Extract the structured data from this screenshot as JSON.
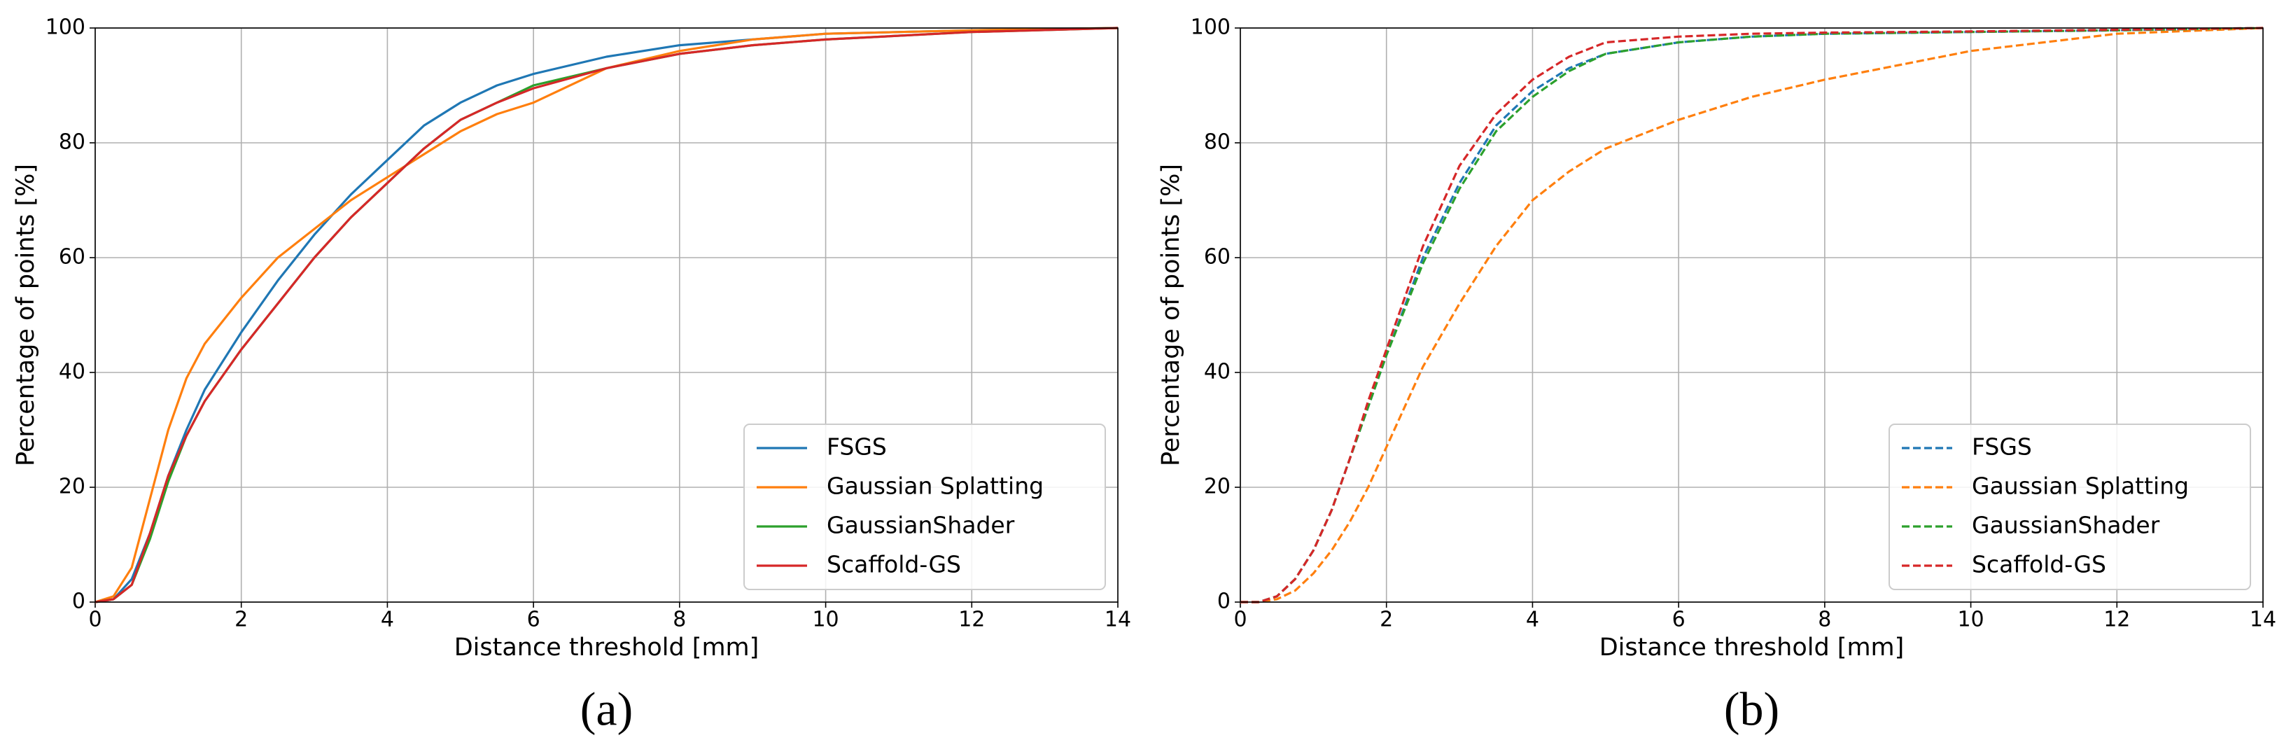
{
  "chart_data": [
    {
      "type": "line",
      "label": "(a)",
      "xlabel": "Distance threshold [mm]",
      "ylabel": "Percentage of points [%]",
      "x": [
        0,
        0.25,
        0.5,
        0.75,
        1,
        1.25,
        1.5,
        2,
        2.5,
        3,
        3.5,
        4,
        4.5,
        5,
        5.5,
        6,
        7,
        8,
        9,
        10,
        12,
        14
      ],
      "series": [
        {
          "name": "FSGS",
          "color": "#1f77b4",
          "values": [
            0,
            0.5,
            4,
            12,
            22,
            30,
            37,
            47,
            56,
            64,
            71,
            77,
            83,
            87,
            90,
            92,
            95,
            97,
            98,
            99,
            99.6,
            100
          ]
        },
        {
          "name": "Gaussian Splatting",
          "color": "#ff7f0e",
          "values": [
            0,
            1,
            6,
            18,
            30,
            39,
            45,
            53,
            60,
            65,
            70,
            74,
            78,
            82,
            85,
            87,
            93,
            96,
            98,
            99,
            99.6,
            100
          ]
        },
        {
          "name": "GaussianShader",
          "color": "#2ca02c",
          "values": [
            0,
            0.5,
            3,
            11,
            21,
            29,
            35,
            44,
            52,
            60,
            67,
            73,
            79,
            84,
            87,
            90,
            93,
            95.5,
            97,
            98,
            99.3,
            100
          ]
        },
        {
          "name": "Scaffold-GS",
          "color": "#d62728",
          "values": [
            0,
            0.5,
            3,
            12,
            22,
            29,
            35,
            44,
            52,
            60,
            67,
            73,
            79,
            84,
            87,
            89.5,
            93,
            95.5,
            97,
            98,
            99.3,
            100
          ]
        }
      ],
      "linestyle": "solid",
      "xlim": [
        0,
        14
      ],
      "ylim": [
        0,
        100
      ],
      "xticks": [
        0,
        2,
        4,
        6,
        8,
        10,
        12,
        14
      ],
      "yticks": [
        0,
        20,
        40,
        60,
        80,
        100
      ],
      "grid": true,
      "legend": "lower right"
    },
    {
      "type": "line",
      "label": "(b)",
      "xlabel": "Distance threshold [mm]",
      "ylabel": "Percentage of points [%]",
      "x": [
        0,
        0.25,
        0.5,
        0.75,
        1,
        1.25,
        1.5,
        1.75,
        2,
        2.5,
        3,
        3.5,
        4,
        4.5,
        5,
        6,
        7,
        8,
        10,
        12,
        14
      ],
      "series": [
        {
          "name": "FSGS",
          "color": "#1f77b4",
          "values": [
            0,
            0,
            1,
            4,
            9,
            16,
            25,
            34,
            43,
            60,
            73,
            83,
            89,
            93,
            95.5,
            97.5,
            98.5,
            99,
            99.3,
            99.6,
            100
          ]
        },
        {
          "name": "Gaussian Splatting",
          "color": "#ff7f0e",
          "values": [
            0,
            0,
            0.5,
            2,
            5,
            9,
            14,
            20,
            27,
            41,
            52,
            62,
            70,
            75,
            79,
            84,
            88,
            91,
            96,
            99,
            100
          ]
        },
        {
          "name": "GaussianShader",
          "color": "#2ca02c",
          "values": [
            0,
            0,
            1,
            4,
            9,
            16,
            25,
            34,
            43,
            59,
            72,
            82,
            88,
            92.5,
            95.5,
            97.5,
            98.5,
            99,
            99.3,
            99.6,
            100
          ]
        },
        {
          "name": "Scaffold-GS",
          "color": "#d62728",
          "values": [
            0,
            0,
            1,
            4,
            9,
            16,
            25,
            35,
            44,
            62,
            76,
            85,
            91,
            95,
            97.5,
            98.5,
            99,
            99.2,
            99.4,
            99.7,
            100
          ]
        }
      ],
      "linestyle": "dashed",
      "xlim": [
        0,
        14
      ],
      "ylim": [
        0,
        100
      ],
      "xticks": [
        0,
        2,
        4,
        6,
        8,
        10,
        12,
        14
      ],
      "yticks": [
        0,
        20,
        40,
        60,
        80,
        100
      ],
      "grid": true,
      "legend": "lower right"
    }
  ]
}
